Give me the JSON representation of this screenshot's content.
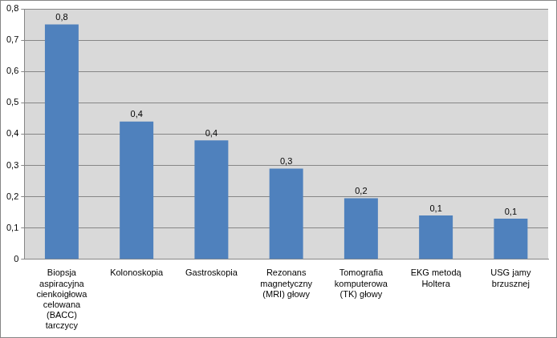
{
  "chart_data": {
    "type": "bar",
    "categories": [
      "Biopsja aspiracyjna cienkoigłowa celowana (BACC) tarczycy",
      "Kolonoskopia",
      "Gastroskopia",
      "Rezonans magnetyczny (MRI) głowy",
      "Tomografia komputerowa (TK) głowy",
      "EKG metodą Holtera",
      "USG jamy brzusznej"
    ],
    "values": [
      0.75,
      0.44,
      0.38,
      0.29,
      0.195,
      0.14,
      0.13
    ],
    "value_labels": [
      "0,8",
      "0,4",
      "0,4",
      "0,3",
      "0,2",
      "0,1",
      "0,1"
    ],
    "color": "#4f81bd",
    "ylim": [
      0,
      0.8
    ],
    "yticks": [
      0,
      {
        "value": 0.1,
        "label": "0,1"
      },
      {
        "value": 0.2,
        "label": "0,2"
      },
      {
        "value": 0.3,
        "label": "0,3"
      },
      {
        "value": 0.4,
        "label": "0,4"
      },
      {
        "value": 0.5,
        "label": "0,5"
      },
      {
        "value": 0.6,
        "label": "0,6"
      },
      {
        "value": 0.7,
        "label": "0,7"
      },
      {
        "value": 0.8,
        "label": "0,8"
      }
    ],
    "grid": true,
    "data_labels": true
  }
}
